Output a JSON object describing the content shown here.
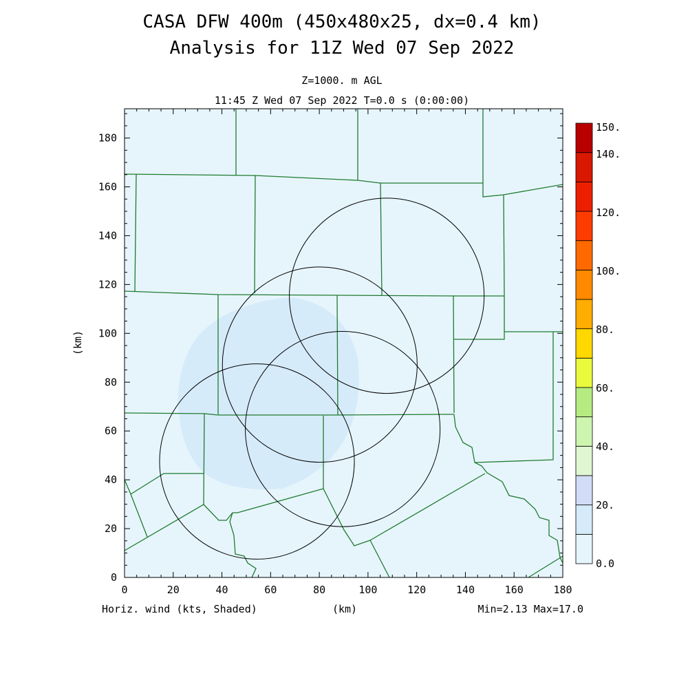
{
  "title": {
    "line1": "CASA DFW 400m (450x480x25, dx=0.4 km)",
    "line2": "Analysis for 11Z Wed 07 Sep 2022"
  },
  "subtitle": {
    "level": "Z=1000. m AGL",
    "time": "11:45 Z Wed 07 Sep 2022   T=0.0 s (0:00:00)"
  },
  "axes": {
    "xlabel": "(km)",
    "ylabel": "(km)",
    "xlim": [
      0,
      180
    ],
    "ylim": [
      0,
      192
    ],
    "xticks": [
      "0",
      "20",
      "40",
      "60",
      "80",
      "100",
      "120",
      "140",
      "160",
      "180"
    ],
    "yticks": [
      "0",
      "20",
      "40",
      "60",
      "80",
      "100",
      "120",
      "140",
      "160",
      "180"
    ]
  },
  "footer": {
    "left": "Horiz. wind (kts, Shaded)",
    "center": "(km)",
    "right": "Min=2.13 Max=17.0"
  },
  "colorbar": {
    "labels": [
      "150.",
      "140.",
      "120.",
      "100.",
      "80.",
      "60.",
      "40.",
      "20.",
      "0.0"
    ],
    "levels": [
      0,
      10,
      20,
      30,
      40,
      50,
      60,
      70,
      80,
      90,
      100,
      110,
      120,
      130,
      140,
      150
    ],
    "colors": [
      "#e6f5fc",
      "#d6ebfa",
      "#d2dcf7",
      "#e0f5d2",
      "#cdf5b0",
      "#b5ec82",
      "#e9fa3c",
      "#ffd800",
      "#ffad00",
      "#ff8a00",
      "#ff6a00",
      "#ff3c00",
      "#ec2000",
      "#d81800",
      "#b80000"
    ]
  },
  "field": {
    "background_color": "#e6f5fc",
    "blob_color": "#d6ebfa",
    "county_color": "#1e7a2e",
    "ring_color": "#000000"
  },
  "radars": [
    {
      "x": 107.7,
      "y": 115.4,
      "range_km": 40
    },
    {
      "x": 80.2,
      "y": 87.2,
      "range_km": 40
    },
    {
      "x": 89.6,
      "y": 60.8,
      "range_km": 40
    },
    {
      "x": 54.4,
      "y": 47.5,
      "range_km": 40
    }
  ]
}
